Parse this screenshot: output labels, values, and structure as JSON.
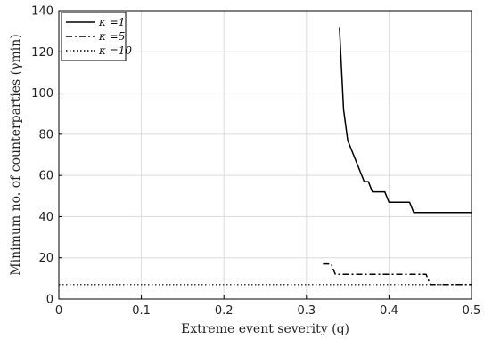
{
  "chart_data": {
    "type": "line",
    "xlabel": "Extreme event severity (q)",
    "ylabel": "Minimum no. of counterparties (γmin)",
    "xlim": [
      0,
      0.5
    ],
    "ylim": [
      0,
      140
    ],
    "xticks": [
      "0",
      "0.1",
      "0.2",
      "0.3",
      "0.4",
      "0.5"
    ],
    "yticks": [
      "0",
      "20",
      "40",
      "60",
      "80",
      "100",
      "120",
      "140"
    ],
    "grid": true,
    "legend_position": "top-left",
    "series": [
      {
        "name": "κ =1",
        "style": "solid",
        "color": "#000000",
        "x": [
          0.34,
          0.345,
          0.35,
          0.355,
          0.36,
          0.365,
          0.37,
          0.375,
          0.38,
          0.385,
          0.39,
          0.395,
          0.4,
          0.41,
          0.42,
          0.425,
          0.43,
          0.44,
          0.45,
          0.46,
          0.47,
          0.48,
          0.49,
          0.5
        ],
        "y": [
          132,
          92,
          77,
          72,
          67,
          62,
          57,
          57,
          52,
          52,
          52,
          52,
          47,
          47,
          47,
          47,
          42,
          42,
          42,
          42,
          42,
          42,
          42,
          42
        ]
      },
      {
        "name": "κ =5",
        "style": "dashdot",
        "color": "#000000",
        "x": [
          0.32,
          0.33,
          0.335,
          0.34,
          0.35,
          0.36,
          0.37,
          0.38,
          0.39,
          0.4,
          0.41,
          0.42,
          0.43,
          0.44,
          0.445,
          0.45,
          0.46,
          0.47,
          0.48,
          0.49,
          0.5
        ],
        "y": [
          17,
          17,
          12,
          12,
          12,
          12,
          12,
          12,
          12,
          12,
          12,
          12,
          12,
          12,
          12,
          7,
          7,
          7,
          7,
          7,
          7
        ]
      },
      {
        "name": "κ =10",
        "style": "dotted",
        "color": "#000000",
        "x": [
          0,
          0.1,
          0.2,
          0.3,
          0.4,
          0.45,
          0.5
        ],
        "y": [
          7,
          7,
          7,
          7,
          7,
          7,
          7
        ]
      }
    ]
  }
}
